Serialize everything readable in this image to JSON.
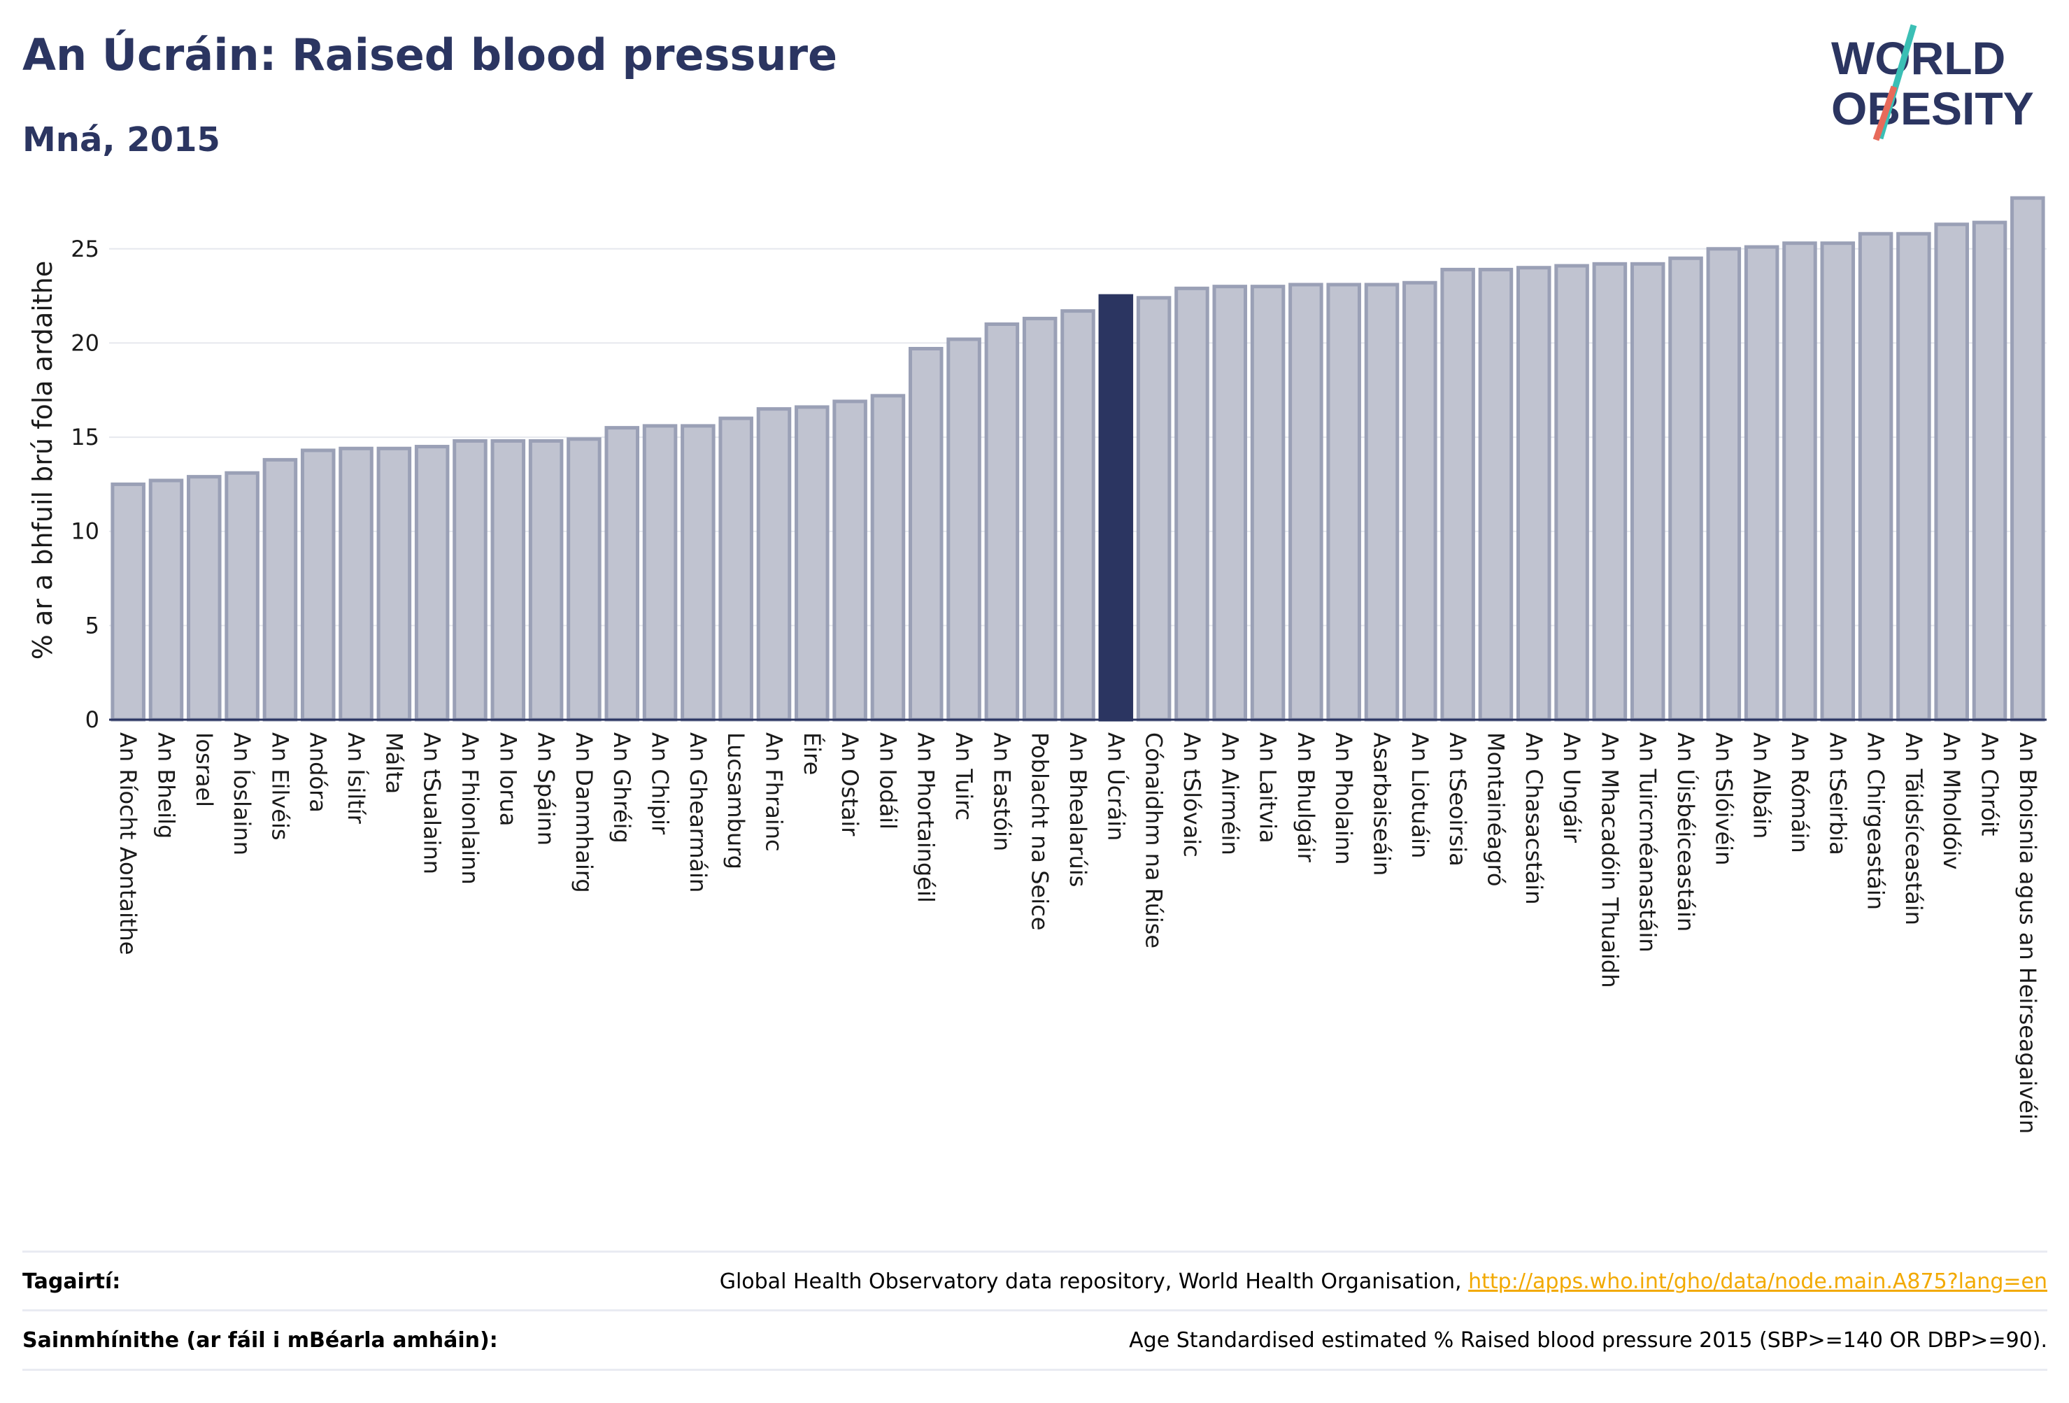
{
  "header": {
    "title": "An Úcráin: Raised blood pressure",
    "subtitle": "Mná, 2015"
  },
  "logo": {
    "line1": "WORLD",
    "line2": "OBESITY"
  },
  "chart_data": {
    "type": "bar",
    "title": "An Úcráin: Raised blood pressure",
    "subtitle": "Mná, 2015",
    "ylabel": "% ar a bhfuil brú fola ardaithe",
    "xlabel": "",
    "ylim": [
      0,
      28
    ],
    "yticks": [
      0,
      5,
      10,
      15,
      20,
      25
    ],
    "grid": true,
    "highlight": "An Úcráin",
    "colors": {
      "bar": "#c0c3d0",
      "bar_edge": "#9aa0b6",
      "highlight": "#2b3561"
    },
    "categories": [
      "An Ríocht Aontaithe",
      "An Bheilg",
      "Iosrael",
      "An Íoslainn",
      "An Eilvéis",
      "Andóra",
      "An Ísiltír",
      "Málta",
      "An tSualainn",
      "An Fhionlainn",
      "An Iorua",
      "An Spáinn",
      "An Danmhairg",
      "An Ghréig",
      "An Chipir",
      "An Ghearmáin",
      "Lucsamburg",
      "An Fhrainc",
      "Éire",
      "An Ostair",
      "An Iodáil",
      "An Phortaingéil",
      "An Tuirc",
      "An Eastóin",
      "Poblacht na Seice",
      "An Bhealarúis",
      "An Úcráin",
      "Cónaidhm na Rúise",
      "An tSlóvaic",
      "An Airméin",
      "An Laitvia",
      "An Bhulgáir",
      "An Pholainn",
      "Asarbaiseáin",
      "An Liotuáin",
      "An tSeoirsia",
      "Montainéagró",
      "An Chasacstáin",
      "An Ungáir",
      "An Mhacadóin Thuaidh",
      "An Tuircméanastáin",
      "An Úisbéiceastáin",
      "An tSlóivéin",
      "An Albáin",
      "An Rómáin",
      "An tSeirbia",
      "An Chirgeastáin",
      "An Táidsíceastáin",
      "An Mholdóiv",
      "An Chróit",
      "An Bhoisnia agus an Heirseagaivéin"
    ],
    "values": [
      12.5,
      12.7,
      12.9,
      13.1,
      13.8,
      14.3,
      14.4,
      14.4,
      14.5,
      14.8,
      14.8,
      14.8,
      14.9,
      15.5,
      15.6,
      15.6,
      16.0,
      16.5,
      16.6,
      16.9,
      17.2,
      19.7,
      20.2,
      21.0,
      21.3,
      21.7,
      22.5,
      22.4,
      22.9,
      23.0,
      23.0,
      23.1,
      23.1,
      23.1,
      23.2,
      23.9,
      23.9,
      24.0,
      24.1,
      24.2,
      24.2,
      24.5,
      25.0,
      25.1,
      25.3,
      25.3,
      25.8,
      25.8,
      26.3,
      26.4,
      27.7
    ]
  },
  "footer": {
    "ref_label": "Tagairtí:",
    "ref_text": "Global Health Observatory data repository, World Health Organisation,",
    "ref_link": "http://apps.who.int/gho/data/node.main.A875?lang=en",
    "def_label": "Sainmhínithe (ar fáil i mBéarla amháin):",
    "def_text": "Age Standardised estimated % Raised blood pressure 2015 (SBP>=140 OR DBP>=90)."
  }
}
